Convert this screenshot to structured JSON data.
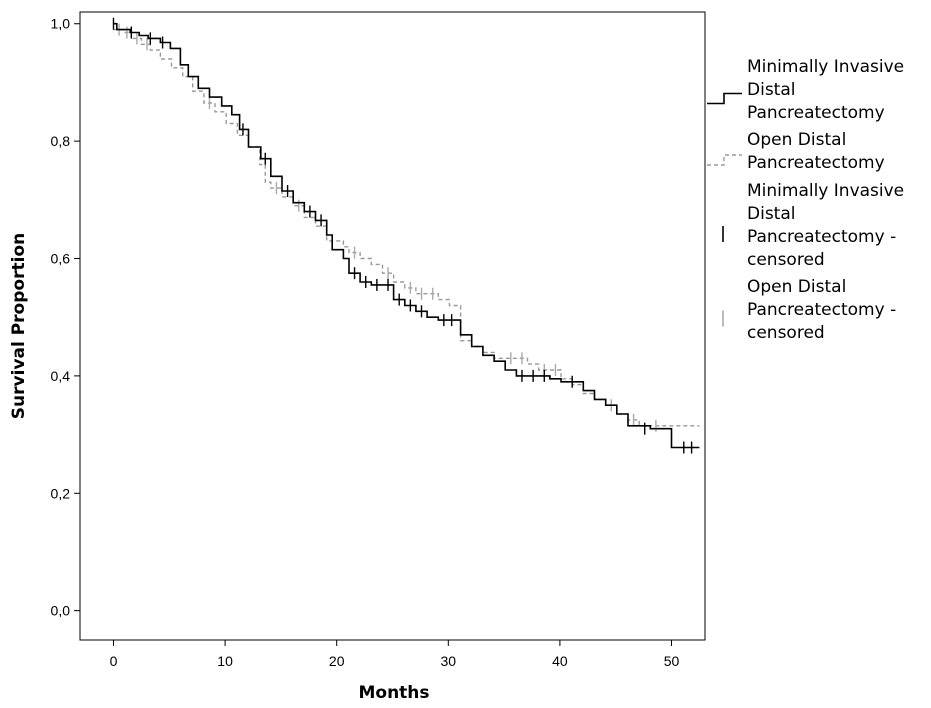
{
  "chart_data": {
    "type": "line",
    "subtype": "kaplan-meier",
    "xlabel": "Months",
    "ylabel": "Survival Proportion",
    "xlim": [
      -3,
      53
    ],
    "ylim": [
      -0.05,
      1.02
    ],
    "x_ticks": [
      0,
      10,
      20,
      30,
      40,
      50
    ],
    "x_tick_labels": [
      "0",
      "10",
      "20",
      "30",
      "40",
      "50"
    ],
    "y_ticks": [
      0.0,
      0.2,
      0.4,
      0.6,
      0.8,
      1.0
    ],
    "y_tick_labels": [
      "0,0",
      "0,2",
      "0,4",
      "0,6",
      "0,8",
      "1,0"
    ],
    "grid": false,
    "legend_position": "right",
    "series": [
      {
        "name": "Minimally Invasive Distal Pancreatectomy",
        "color": "#000000",
        "line_style": "solid",
        "steps": [
          [
            0,
            1.0
          ],
          [
            0.3,
            0.99
          ],
          [
            1.5,
            0.985
          ],
          [
            2.3,
            0.98
          ],
          [
            3.1,
            0.975
          ],
          [
            4.2,
            0.968
          ],
          [
            5.1,
            0.958
          ],
          [
            6,
            0.93
          ],
          [
            6.7,
            0.91
          ],
          [
            7.6,
            0.89
          ],
          [
            8.6,
            0.875
          ],
          [
            9.7,
            0.86
          ],
          [
            10.6,
            0.845
          ],
          [
            11.3,
            0.82
          ],
          [
            12.1,
            0.79
          ],
          [
            13.2,
            0.77
          ],
          [
            14.1,
            0.74
          ],
          [
            15.1,
            0.715
          ],
          [
            16.1,
            0.695
          ],
          [
            17.1,
            0.68
          ],
          [
            18.1,
            0.665
          ],
          [
            19.1,
            0.64
          ],
          [
            19.6,
            0.615
          ],
          [
            20.6,
            0.6
          ],
          [
            21.1,
            0.575
          ],
          [
            22.1,
            0.56
          ],
          [
            23.1,
            0.555
          ],
          [
            25.1,
            0.53
          ],
          [
            26.1,
            0.52
          ],
          [
            27.1,
            0.51
          ],
          [
            28.1,
            0.5
          ],
          [
            29.1,
            0.495
          ],
          [
            31.1,
            0.47
          ],
          [
            32.1,
            0.45
          ],
          [
            33.1,
            0.435
          ],
          [
            34.1,
            0.425
          ],
          [
            35.1,
            0.41
          ],
          [
            36.1,
            0.4
          ],
          [
            39.1,
            0.395
          ],
          [
            40.1,
            0.39
          ],
          [
            42.1,
            0.375
          ],
          [
            43.1,
            0.36
          ],
          [
            44.1,
            0.35
          ],
          [
            45.1,
            0.335
          ],
          [
            46.1,
            0.315
          ],
          [
            48.1,
            0.31
          ],
          [
            50,
            0.278
          ],
          [
            52.5,
            0.278
          ]
        ],
        "censored": [
          [
            0,
            1.0
          ],
          [
            1.6,
            0.985
          ],
          [
            3.3,
            0.975
          ],
          [
            4.4,
            0.968
          ],
          [
            11.6,
            0.82
          ],
          [
            13.6,
            0.77
          ],
          [
            15.6,
            0.715
          ],
          [
            17.6,
            0.68
          ],
          [
            18.6,
            0.665
          ],
          [
            21.6,
            0.575
          ],
          [
            22.6,
            0.56
          ],
          [
            23.6,
            0.555
          ],
          [
            24.6,
            0.555
          ],
          [
            25.6,
            0.53
          ],
          [
            26.6,
            0.52
          ],
          [
            27.6,
            0.51
          ],
          [
            29.6,
            0.495
          ],
          [
            30.3,
            0.495
          ],
          [
            36.6,
            0.4
          ],
          [
            37.6,
            0.4
          ],
          [
            38.6,
            0.4
          ],
          [
            41.1,
            0.39
          ],
          [
            47.6,
            0.31
          ],
          [
            51.1,
            0.278
          ],
          [
            51.8,
            0.278
          ]
        ]
      },
      {
        "name": "Open Distal Pancreatectomy",
        "color": "#999999",
        "line_style": "dashed",
        "steps": [
          [
            0,
            0.99
          ],
          [
            0.9,
            0.985
          ],
          [
            1.6,
            0.975
          ],
          [
            2.5,
            0.965
          ],
          [
            3.3,
            0.955
          ],
          [
            4.2,
            0.94
          ],
          [
            5.2,
            0.925
          ],
          [
            6.2,
            0.91
          ],
          [
            7.1,
            0.885
          ],
          [
            8.1,
            0.865
          ],
          [
            9.1,
            0.85
          ],
          [
            10.1,
            0.83
          ],
          [
            11.1,
            0.81
          ],
          [
            12.1,
            0.79
          ],
          [
            13.1,
            0.76
          ],
          [
            13.6,
            0.73
          ],
          [
            14.1,
            0.72
          ],
          [
            15.1,
            0.705
          ],
          [
            16.1,
            0.69
          ],
          [
            17.1,
            0.67
          ],
          [
            18.1,
            0.655
          ],
          [
            19.1,
            0.63
          ],
          [
            20.6,
            0.62
          ],
          [
            21.1,
            0.61
          ],
          [
            22.1,
            0.6
          ],
          [
            23.1,
            0.59
          ],
          [
            24.1,
            0.575
          ],
          [
            25.1,
            0.56
          ],
          [
            26.1,
            0.55
          ],
          [
            27.1,
            0.54
          ],
          [
            29.1,
            0.53
          ],
          [
            30.1,
            0.52
          ],
          [
            31.1,
            0.46
          ],
          [
            32.1,
            0.45
          ],
          [
            33.1,
            0.44
          ],
          [
            34.1,
            0.43
          ],
          [
            37.1,
            0.42
          ],
          [
            38.1,
            0.41
          ],
          [
            40.1,
            0.395
          ],
          [
            41.1,
            0.385
          ],
          [
            42.1,
            0.37
          ],
          [
            43.1,
            0.36
          ],
          [
            44.1,
            0.35
          ],
          [
            45.1,
            0.335
          ],
          [
            46.1,
            0.325
          ],
          [
            47.1,
            0.315
          ],
          [
            52.5,
            0.315
          ]
        ],
        "censored": [
          [
            0.5,
            0.99
          ],
          [
            1.2,
            0.985
          ],
          [
            2.1,
            0.975
          ],
          [
            3.0,
            0.965
          ],
          [
            8.6,
            0.865
          ],
          [
            14.6,
            0.72
          ],
          [
            16.6,
            0.69
          ],
          [
            19.6,
            0.63
          ],
          [
            21.6,
            0.61
          ],
          [
            24.6,
            0.575
          ],
          [
            26.6,
            0.55
          ],
          [
            27.6,
            0.54
          ],
          [
            28.6,
            0.54
          ],
          [
            35.6,
            0.43
          ],
          [
            36.6,
            0.43
          ],
          [
            38.6,
            0.41
          ],
          [
            39.6,
            0.41
          ],
          [
            44.6,
            0.35
          ],
          [
            46.6,
            0.325
          ],
          [
            48.6,
            0.315
          ]
        ]
      }
    ],
    "legend": [
      {
        "label": "Minimally Invasive Distal Pancreatectomy",
        "symbol": "step-solid",
        "color": "#000000"
      },
      {
        "label": "Open Distal Pancreatectomy",
        "symbol": "step-dashed",
        "color": "#999999"
      },
      {
        "label": "Minimally Invasive Distal Pancreatectomy - censored",
        "symbol": "tick",
        "color": "#000000"
      },
      {
        "label": "Open Distal Pancreatectomy - censored",
        "symbol": "tick",
        "color": "#aaaaaa"
      }
    ]
  }
}
